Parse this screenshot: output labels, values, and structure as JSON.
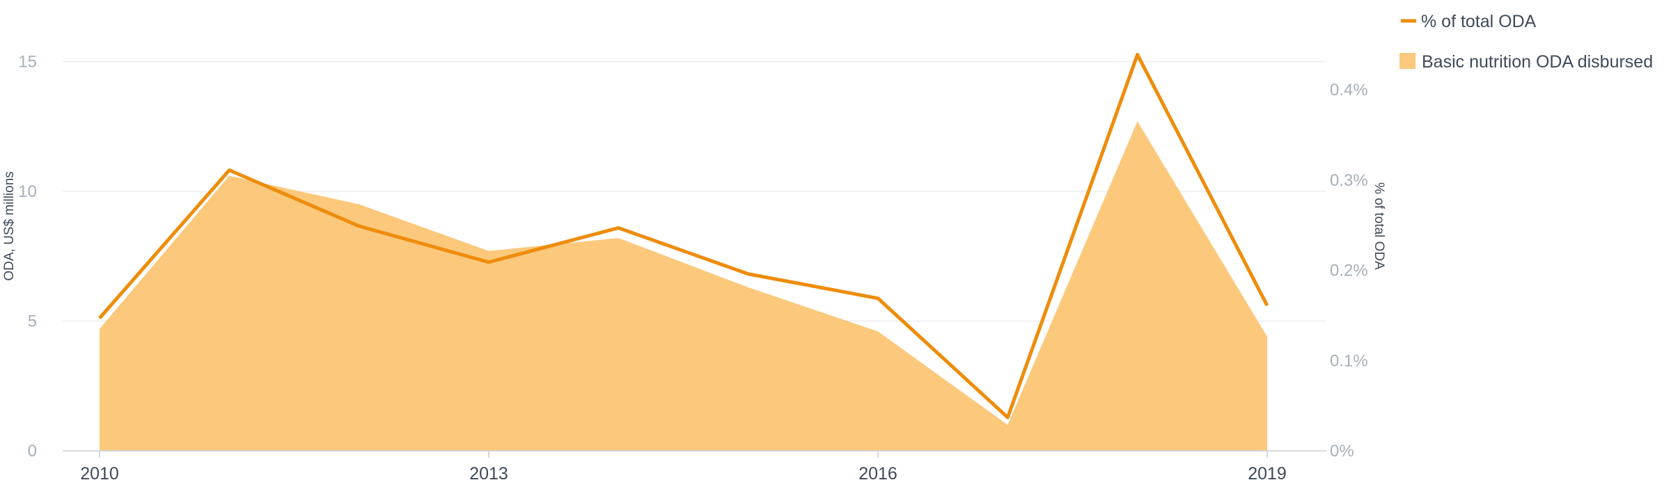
{
  "chart_data": {
    "type": "area",
    "x": [
      2010,
      2011,
      2012,
      2013,
      2014,
      2015,
      2016,
      2017,
      2018,
      2019
    ],
    "x_tick_labels": [
      "2010",
      "2013",
      "2016",
      "2019"
    ],
    "xlim": [
      2010,
      2019
    ],
    "series": [
      {
        "name": "Basic nutrition ODA disbursed",
        "type": "area",
        "axis": "left",
        "color": "#fbc87c",
        "values": [
          4.7,
          10.6,
          9.5,
          7.7,
          8.2,
          6.3,
          4.6,
          1.0,
          12.7,
          4.4
        ]
      },
      {
        "name": "% of total ODA",
        "type": "line",
        "axis": "right",
        "color": "#ee8c0b",
        "values": [
          0.147,
          0.311,
          0.249,
          0.209,
          0.247,
          0.196,
          0.169,
          0.037,
          0.439,
          0.161
        ]
      }
    ],
    "y_left": {
      "label": "ODA, US$ millions",
      "ticks": [
        "0",
        "5",
        "10",
        "15"
      ],
      "tick_values": [
        0,
        5,
        10,
        15
      ],
      "ylim": [
        0,
        16.3
      ]
    },
    "y_right": {
      "label": "% of total ODA",
      "ticks": [
        "0%",
        "0.1%",
        "0.2%",
        "0.3%",
        "0.4%"
      ],
      "tick_values": [
        0,
        0.1,
        0.2,
        0.3,
        0.4
      ],
      "ylim": [
        0,
        0.4687
      ]
    },
    "title": "",
    "grid": true,
    "legend_position": "top-right",
    "legend": [
      {
        "label": "% of total ODA",
        "symbol": "line",
        "color": "#ee8c0b"
      },
      {
        "label": "Basic nutrition ODA disbursed",
        "symbol": "square",
        "color": "#fbc87c"
      }
    ]
  }
}
